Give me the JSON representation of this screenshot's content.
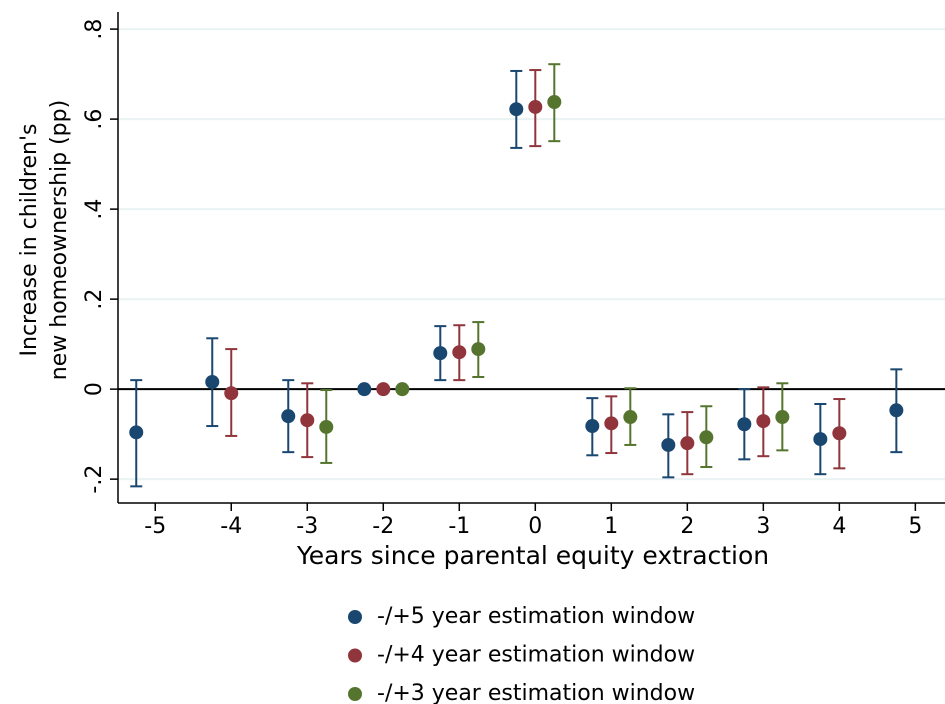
{
  "chart_data": {
    "type": "errorbar",
    "y_label": [
      "Increase in children's",
      "new homeownership (pp)"
    ],
    "x_label": "Years since parental equity extraction",
    "xlim": [
      -5.49,
      5.39
    ],
    "xticks": [
      -5,
      -4,
      -3,
      -2,
      -1,
      0,
      1,
      2,
      3,
      4,
      5
    ],
    "ylim": [
      -0.253,
      0.838
    ],
    "yticks": [
      {
        "value": -0.2,
        "label": "-.2"
      },
      0,
      {
        "value": 0.2,
        "label": ".2"
      },
      {
        "value": 0.4,
        "label": ".4"
      },
      {
        "value": 0.6,
        "label": ".6"
      },
      {
        "value": 0.8,
        "label": ".8"
      }
    ],
    "grid": true,
    "reference_line": 0,
    "legend": "bottom",
    "series": [
      {
        "name": "-/+5 year estimation window",
        "color": "#1a476f",
        "x": [
          -5.25,
          -4.25,
          -3.25,
          -2.25,
          -1.25,
          -0.25,
          0.75,
          1.75,
          2.75,
          3.75,
          4.75
        ],
        "values": [
          -0.096,
          0.016,
          -0.06,
          0,
          0.08,
          0.622,
          -0.082,
          -0.124,
          -0.078,
          -0.111,
          -0.047
        ],
        "lower": [
          -0.216,
          -0.082,
          -0.14,
          0,
          0.02,
          0.536,
          -0.147,
          -0.196,
          -0.156,
          -0.189,
          -0.14
        ],
        "upper": [
          0.02,
          0.113,
          0.02,
          0,
          0.14,
          0.707,
          -0.02,
          -0.056,
          0.0,
          -0.033,
          0.044
        ]
      },
      {
        "name": "-/+4 year estimation window",
        "color": "#90353b",
        "x": [
          -4,
          -3,
          -2,
          -1,
          0,
          1,
          2,
          3,
          4
        ],
        "values": [
          -0.009,
          -0.069,
          0,
          0.082,
          0.627,
          -0.076,
          -0.12,
          -0.071,
          -0.098
        ],
        "lower": [
          -0.104,
          -0.151,
          0,
          0.02,
          0.54,
          -0.142,
          -0.189,
          -0.149,
          -0.176
        ],
        "upper": [
          0.089,
          0.013,
          0,
          0.142,
          0.709,
          -0.016,
          -0.051,
          0.004,
          -0.022
        ]
      },
      {
        "name": "-/+3 year estimation window",
        "color": "#55752f",
        "x": [
          -2.75,
          -1.75,
          -0.75,
          0.25,
          1.25,
          2.25,
          3.25
        ],
        "values": [
          -0.084,
          0,
          0.089,
          0.638,
          -0.062,
          -0.107,
          -0.062
        ],
        "lower": [
          -0.164,
          0,
          0.027,
          0.551,
          -0.124,
          -0.173,
          -0.136
        ],
        "upper": [
          -0.002,
          0,
          0.149,
          0.722,
          0.002,
          -0.038,
          0.013
        ]
      }
    ]
  }
}
